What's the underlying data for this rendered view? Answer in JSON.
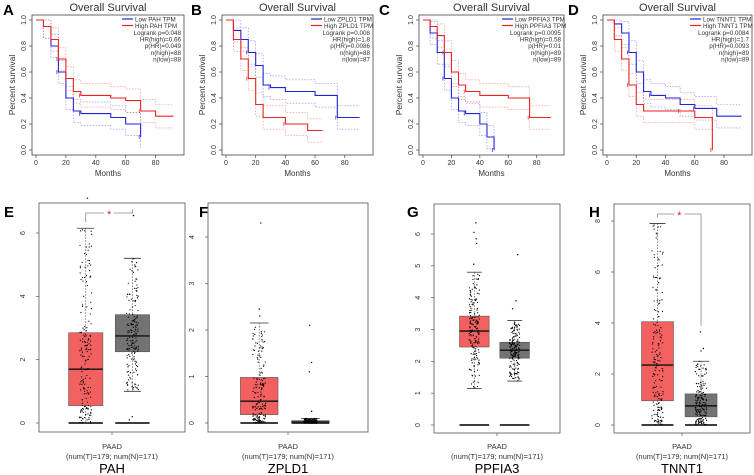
{
  "chart_data": [
    {
      "panel": "A",
      "type": "line",
      "title": "Overall Survival",
      "xlabel": "Months",
      "ylabel": "Percent survival",
      "xticks": [
        0,
        20,
        40,
        60,
        80
      ],
      "yticks": [
        "0.0",
        "0.2",
        "0.4",
        "0.6",
        "0.8",
        "1.0"
      ],
      "xlim": [
        0,
        95
      ],
      "ylim": [
        0,
        1
      ],
      "legend": [
        "Low PAH TPM",
        "High PAH TPM"
      ],
      "stats": [
        "Logrank p=0.048",
        "HR(high)=0.66",
        "p(HR)=0.049",
        "n(high)=88",
        "n(low)=88"
      ],
      "series": [
        {
          "name": "Low PAH TPM",
          "color": "#2222dd",
          "points": [
            [
              0,
              1
            ],
            [
              5,
              0.95
            ],
            [
              10,
              0.8
            ],
            [
              15,
              0.6
            ],
            [
              20,
              0.4
            ],
            [
              25,
              0.3
            ],
            [
              30,
              0.28
            ],
            [
              50,
              0.25
            ],
            [
              60,
              0.2
            ],
            [
              70,
              0.1
            ]
          ]
        },
        {
          "name": "High PAH TPM",
          "color": "#ee2222",
          "points": [
            [
              0,
              1
            ],
            [
              5,
              0.95
            ],
            [
              10,
              0.85
            ],
            [
              15,
              0.7
            ],
            [
              20,
              0.55
            ],
            [
              25,
              0.45
            ],
            [
              30,
              0.42
            ],
            [
              50,
              0.4
            ],
            [
              60,
              0.38
            ],
            [
              70,
              0.3
            ],
            [
              80,
              0.26
            ],
            [
              92,
              0.26
            ]
          ]
        }
      ]
    },
    {
      "panel": "B",
      "type": "line",
      "title": "Overall Survival",
      "xlabel": "Months",
      "ylabel": "Percent survival",
      "xticks": [
        0,
        20,
        40,
        60,
        80
      ],
      "yticks": [
        "0.0",
        "0.2",
        "0.4",
        "0.6",
        "0.8",
        "1.0"
      ],
      "xlim": [
        0,
        95
      ],
      "ylim": [
        0,
        1
      ],
      "legend": [
        "Low ZPLD1 TPM",
        "High ZPLD1 TPM"
      ],
      "stats": [
        "Logrank p=0.008",
        "HR(high)=1.8",
        "p(HR)=0.0086",
        "n(high)=88",
        "n(low)=87"
      ],
      "series": [
        {
          "name": "Low ZPLD1 TPM",
          "color": "#2222dd",
          "points": [
            [
              0,
              1
            ],
            [
              5,
              0.92
            ],
            [
              10,
              0.85
            ],
            [
              15,
              0.75
            ],
            [
              20,
              0.65
            ],
            [
              25,
              0.5
            ],
            [
              30,
              0.48
            ],
            [
              40,
              0.45
            ],
            [
              60,
              0.42
            ],
            [
              75,
              0.25
            ],
            [
              90,
              0.25
            ]
          ]
        },
        {
          "name": "High ZPLD1 TPM",
          "color": "#ee2222",
          "points": [
            [
              0,
              1
            ],
            [
              5,
              0.85
            ],
            [
              10,
              0.7
            ],
            [
              15,
              0.55
            ],
            [
              20,
              0.35
            ],
            [
              25,
              0.25
            ],
            [
              40,
              0.2
            ],
            [
              55,
              0.15
            ],
            [
              65,
              0.15
            ]
          ]
        }
      ]
    },
    {
      "panel": "C",
      "type": "line",
      "title": "Overall Survival",
      "xlabel": "Months",
      "ylabel": "Percent survival",
      "xticks": [
        0,
        20,
        40,
        60,
        80
      ],
      "yticks": [
        "0.0",
        "0.2",
        "0.4",
        "0.6",
        "0.8",
        "1.0"
      ],
      "xlim": [
        0,
        95
      ],
      "ylim": [
        0,
        1
      ],
      "legend": [
        "Low PPFIA3 TPM",
        "High PPFIA3 TPM"
      ],
      "stats": [
        "Logrank p=0.0095",
        "HR(high)=0.58",
        "p(HR)=0.01",
        "n(high)=89",
        "n(low)=89"
      ],
      "series": [
        {
          "name": "Low PPFIA3 TPM",
          "color": "#2222dd",
          "points": [
            [
              0,
              1
            ],
            [
              5,
              0.9
            ],
            [
              10,
              0.75
            ],
            [
              15,
              0.55
            ],
            [
              20,
              0.4
            ],
            [
              25,
              0.3
            ],
            [
              30,
              0.28
            ],
            [
              40,
              0.2
            ],
            [
              45,
              0.1
            ],
            [
              50,
              0
            ]
          ]
        },
        {
          "name": "High PPFIA3 TPM",
          "color": "#ee2222",
          "points": [
            [
              0,
              1
            ],
            [
              5,
              0.95
            ],
            [
              10,
              0.88
            ],
            [
              15,
              0.75
            ],
            [
              20,
              0.6
            ],
            [
              25,
              0.5
            ],
            [
              30,
              0.45
            ],
            [
              40,
              0.42
            ],
            [
              60,
              0.4
            ],
            [
              75,
              0.25
            ],
            [
              90,
              0.25
            ]
          ]
        }
      ]
    },
    {
      "panel": "D",
      "type": "line",
      "title": "Overall Survival",
      "xlabel": "Months",
      "ylabel": "Percent survival",
      "xticks": [
        0,
        20,
        40,
        60,
        80
      ],
      "yticks": [
        "0.0",
        "0.2",
        "0.4",
        "0.6",
        "0.8",
        "1.0"
      ],
      "xlim": [
        0,
        95
      ],
      "ylim": [
        0,
        1
      ],
      "legend": [
        "Low TNNT1 TPM",
        "High TNNT1 TPM"
      ],
      "stats": [
        "Logrank p=0.0084",
        "HR(high)=1.7",
        "p(HR)=0.0093",
        "n(high)=89",
        "n(low)=89"
      ],
      "series": [
        {
          "name": "Low TNNT1 TPM",
          "color": "#2222dd",
          "points": [
            [
              0,
              1
            ],
            [
              5,
              0.97
            ],
            [
              10,
              0.9
            ],
            [
              15,
              0.75
            ],
            [
              20,
              0.6
            ],
            [
              25,
              0.45
            ],
            [
              30,
              0.42
            ],
            [
              40,
              0.4
            ],
            [
              50,
              0.35
            ],
            [
              60,
              0.32
            ],
            [
              75,
              0.26
            ],
            [
              92,
              0.26
            ]
          ]
        },
        {
          "name": "High TNNT1 TPM",
          "color": "#ee2222",
          "points": [
            [
              0,
              1
            ],
            [
              5,
              0.85
            ],
            [
              10,
              0.7
            ],
            [
              15,
              0.5
            ],
            [
              20,
              0.35
            ],
            [
              25,
              0.3
            ],
            [
              50,
              0.3
            ],
            [
              60,
              0.25
            ],
            [
              71,
              0.25
            ],
            [
              72,
              0
            ]
          ]
        }
      ]
    },
    {
      "panel": "E",
      "type": "box",
      "gene": "PAH",
      "dataset": "PAAD",
      "counts": "(num(T)=179; num(N)=171)",
      "yticks": [
        0,
        2,
        4,
        6
      ],
      "significant": true,
      "marker": "*",
      "groups": [
        {
          "color": "#f26060",
          "min": 0,
          "q1": 0.55,
          "median": 1.7,
          "q3": 2.85,
          "max": 6.15,
          "outliers": [
            7.1
          ]
        },
        {
          "color": "#737373",
          "min": 1.0,
          "q1": 2.25,
          "median": 2.75,
          "q3": 3.42,
          "max": 5.2,
          "outliers": [
            6.55,
            0.2,
            0.1
          ]
        }
      ]
    },
    {
      "panel": "F",
      "type": "box",
      "gene": "ZPLD1",
      "dataset": "PAAD",
      "counts": "(num(T)=179; num(N)=171)",
      "yticks": [
        0,
        1,
        2,
        3,
        4
      ],
      "significant": false,
      "groups": [
        {
          "color": "#f26060",
          "min": 0,
          "q1": 0.18,
          "median": 0.47,
          "q3": 0.98,
          "max": 2.15,
          "outliers": [
            4.3,
            2.45,
            2.3
          ]
        },
        {
          "color": "#737373",
          "min": 0,
          "q1": 0.0,
          "median": 0.02,
          "q3": 0.05,
          "max": 0.1,
          "outliers": [
            2.1,
            1.3,
            1.1,
            0.25
          ]
        }
      ]
    },
    {
      "panel": "G",
      "type": "box",
      "gene": "PPFIA3",
      "dataset": "PAAD",
      "counts": "(num(T)=179; num(N)=171)",
      "yticks": [
        0,
        1,
        2,
        3,
        4,
        5,
        6
      ],
      "significant": false,
      "groups": [
        {
          "color": "#f26060",
          "min": 1.15,
          "q1": 2.45,
          "median": 2.95,
          "q3": 3.42,
          "max": 4.8,
          "outliers": [
            6.35,
            6.05,
            5.85,
            5.7,
            5.05,
            1.2
          ]
        },
        {
          "color": "#737373",
          "min": 1.38,
          "q1": 2.1,
          "median": 2.35,
          "q3": 2.6,
          "max": 3.28,
          "outliers": [
            5.35,
            3.9,
            3.65
          ]
        }
      ]
    },
    {
      "panel": "H",
      "type": "box",
      "gene": "TNNT1",
      "dataset": "PAAD",
      "counts": "(num(T)=179; num(N)=171)",
      "yticks": [
        0,
        2,
        4,
        6,
        8
      ],
      "significant": true,
      "marker": "*",
      "groups": [
        {
          "color": "#f26060",
          "min": 0,
          "q1": 0.95,
          "median": 2.35,
          "q3": 4.05,
          "max": 7.9,
          "outliers": []
        },
        {
          "color": "#737373",
          "min": 0,
          "q1": 0.32,
          "median": 0.75,
          "q3": 1.22,
          "max": 2.5,
          "outliers": [
            3.65,
            3.0,
            2.9
          ]
        }
      ]
    }
  ]
}
